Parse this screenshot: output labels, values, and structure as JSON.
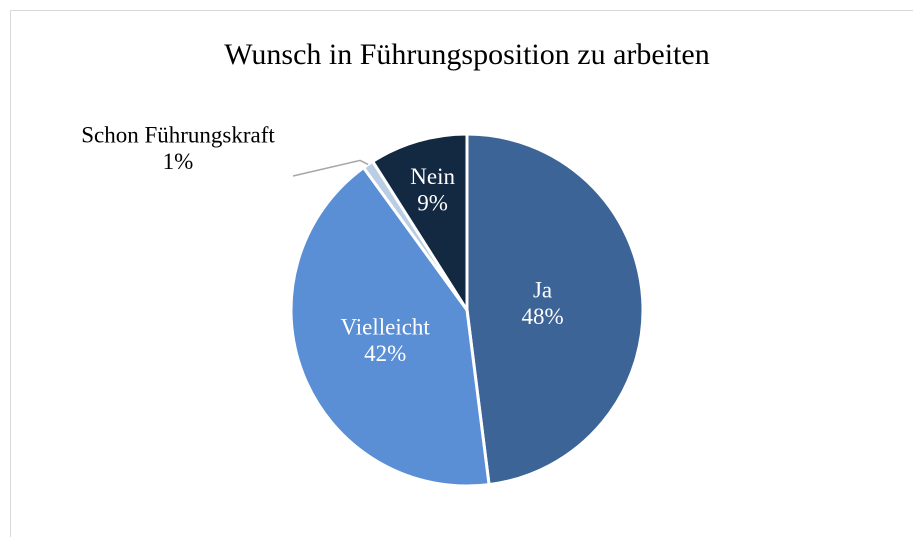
{
  "chart_data": {
    "type": "pie",
    "title": "Wunsch in Führungsposition zu arbeiten",
    "categories": [
      "Ja",
      "Vielleicht",
      "Schon Führungskraft",
      "Nein"
    ],
    "values": [
      48,
      42,
      1,
      9
    ],
    "value_labels": [
      "48%",
      "42%",
      "1%",
      "9%"
    ],
    "colors": [
      "#3d6496",
      "#5a8fd6",
      "#b9cde5",
      "#132841"
    ]
  }
}
